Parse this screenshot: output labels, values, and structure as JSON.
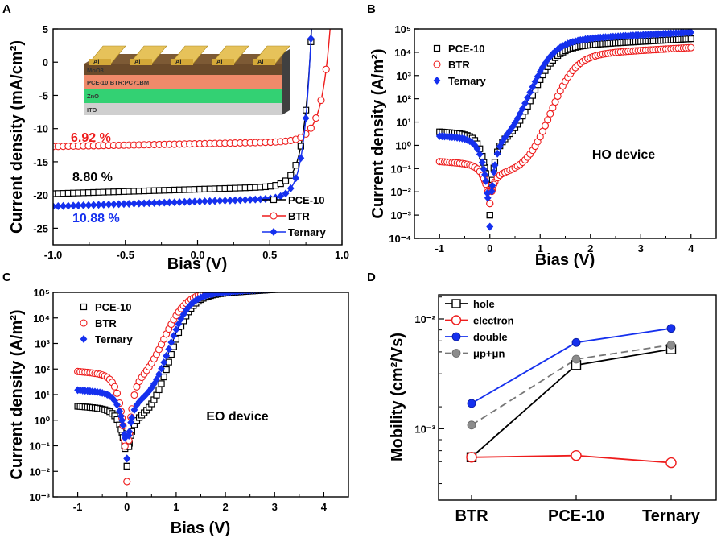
{
  "colors": {
    "pce10": "#000000",
    "btr": "#ee1c1c",
    "ternary": "#1530ee",
    "sum": "#777777",
    "sum_fill": "#8c8c8c"
  },
  "chart_data": [
    {
      "id": "A",
      "type": "line",
      "panel_label": "A",
      "xlabel": "Bias (V)",
      "ylabel": "Current density (mA/cm²)",
      "xlim": [
        -1.0,
        1.0
      ],
      "ylim": [
        -27.5,
        5
      ],
      "xticks": [
        "-1.0",
        "-0.5",
        "0.0",
        "0.5",
        "1.0"
      ],
      "yticks": [
        "5",
        "0",
        "-5",
        "-10",
        "-15",
        "-20",
        "-25"
      ],
      "legend_position": "bottom-right",
      "series": [
        {
          "name": "PCE-10",
          "color_key": "pce10",
          "marker": "square",
          "jsc": -19.8,
          "voc": 0.78,
          "n": 1.4
        },
        {
          "name": "BTR",
          "color_key": "btr",
          "marker": "circle",
          "jsc": -12.7,
          "voc": 0.9,
          "n": 1.6
        },
        {
          "name": "Ternary",
          "color_key": "ternary",
          "marker": "diamond",
          "jsc": -21.7,
          "voc": 0.78,
          "n": 1.3
        }
      ],
      "annotations": [
        {
          "text": "6.92 %",
          "color_key": "btr"
        },
        {
          "text": "8.80 %",
          "color_key": "pce10"
        },
        {
          "text": "10.88 %",
          "color_key": "ternary"
        }
      ],
      "inset": {
        "electrode": "Al",
        "electrode_count": 5,
        "layers": [
          "MoO3",
          "PCE-10:BTR:PC71BM",
          "ZnO",
          "ITO"
        ]
      }
    },
    {
      "id": "B",
      "type": "scatter",
      "panel_label": "B",
      "yscale": "log",
      "xlabel": "Bias (V)",
      "ylabel": "Current density (A/m²)",
      "xlim": [
        -1.5,
        4.5
      ],
      "ylim": [
        -4,
        5
      ],
      "xticks": [
        "-1",
        "0",
        "1",
        "2",
        "3",
        "4"
      ],
      "ytick_labels": [
        "10⁵",
        "10⁴",
        "10³",
        "10²",
        "10¹",
        "10⁰",
        "10⁻¹",
        "10⁻²",
        "10⁻³",
        "10⁻⁴"
      ],
      "legend_position": "top-left",
      "label": "HO device",
      "series": [
        {
          "name": "PCE-10",
          "color_key": "pce10",
          "marker": "square",
          "neg": 3.8,
          "min_log": -3.0,
          "plateau": 4.1,
          "rise_mid": 0.85,
          "rise_scale": 0.5
        },
        {
          "name": "BTR",
          "color_key": "btr",
          "marker": "circle",
          "neg": 0.2,
          "min_log": -2.5,
          "plateau": 3.72,
          "rise_mid": 1.2,
          "rise_scale": 0.55
        },
        {
          "name": "Ternary",
          "color_key": "ternary",
          "marker": "diamond",
          "neg": 2.5,
          "min_log": -3.5,
          "plateau": 4.38,
          "rise_mid": 0.78,
          "rise_scale": 0.55
        }
      ]
    },
    {
      "id": "C",
      "type": "scatter",
      "panel_label": "C",
      "yscale": "log",
      "xlabel": "Bias (V)",
      "ylabel": "Current density (A/m²)",
      "xlim": [
        -1.5,
        4.5
      ],
      "ylim": [
        -3,
        5
      ],
      "xticks": [
        "-1",
        "0",
        "1",
        "2",
        "3",
        "4"
      ],
      "ytick_labels": [
        "10⁵",
        "10⁴",
        "10³",
        "10²",
        "10¹",
        "10⁰",
        "10⁻¹",
        "10⁻²",
        "10⁻³"
      ],
      "legend_position": "top-left",
      "label": "EO device",
      "series": [
        {
          "name": "PCE-10",
          "color_key": "pce10",
          "marker": "square",
          "neg": 3.5,
          "min_log": -1.8,
          "plateau": 4.75,
          "rise_mid": 0.88,
          "rise_scale": 0.45
        },
        {
          "name": "BTR",
          "color_key": "btr",
          "marker": "circle",
          "neg": 80,
          "min_log": -2.4,
          "plateau": 4.85,
          "rise_mid": 0.75,
          "rise_scale": 0.5
        },
        {
          "name": "Ternary",
          "color_key": "ternary",
          "marker": "diamond",
          "neg": 15,
          "min_log": -1.5,
          "plateau": 4.78,
          "rise_mid": 0.85,
          "rise_scale": 0.45
        }
      ]
    },
    {
      "id": "D",
      "type": "line",
      "panel_label": "D",
      "yscale": "log",
      "xlabel": "",
      "ylabel": "Mobility (cm²/Vs)",
      "categories": [
        "BTR",
        "PCE-10",
        "Ternary"
      ],
      "ylim": [
        -3.65,
        -1.78
      ],
      "ytick_labels": [
        "10⁻²",
        "10⁻³"
      ],
      "legend_position": "top-left",
      "series": [
        {
          "name": "hole",
          "color_key": "pce10",
          "marker": "square",
          "values": [
            0.00055,
            0.0038,
            0.0053
          ]
        },
        {
          "name": "electron",
          "color_key": "btr",
          "marker": "circle",
          "values": [
            0.00055,
            0.00057,
            0.00049
          ]
        },
        {
          "name": "double",
          "color_key": "ternary",
          "marker": "filled-circle",
          "values": [
            0.0017,
            0.0061,
            0.0082
          ]
        },
        {
          "name": "μp+μn",
          "color_key": "sum",
          "marker": "gray-circle",
          "dashed": true,
          "values": [
            0.00108,
            0.0043,
            0.0058
          ]
        }
      ]
    }
  ]
}
